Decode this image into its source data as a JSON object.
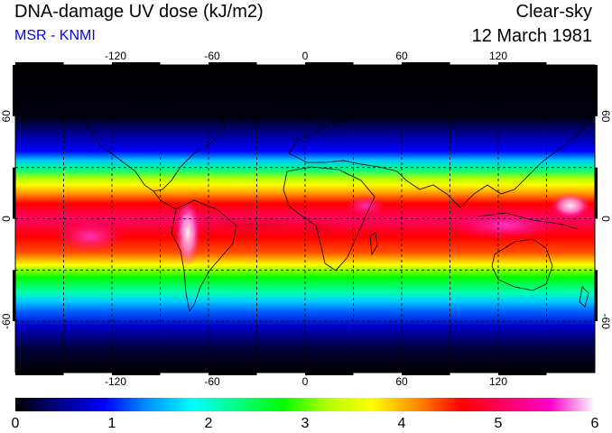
{
  "header": {
    "title": "DNA-damage UV dose (kJ/m2)",
    "subtitle": "MSR - KNMI",
    "sky_condition": "Clear-sky",
    "date": "12 March 1981"
  },
  "colors": {
    "subtitle": "#0000ff",
    "colormap": [
      "#000000",
      "#00008a",
      "#0000ff",
      "#0096ff",
      "#00ffff",
      "#00ff80",
      "#00ff00",
      "#b4ff00",
      "#ffff00",
      "#ff8c00",
      "#ff0000",
      "#ff0064",
      "#ff00c8",
      "#ffffff"
    ]
  },
  "map": {
    "longitude_ticks": [
      "-120",
      "-60",
      "0",
      "60",
      "120"
    ],
    "latitude_ticks": [
      "60",
      "0",
      "-60"
    ],
    "lon_range": [
      -180,
      180
    ],
    "lat_range": [
      -90,
      90
    ],
    "grid": "dashed every 30 degrees"
  },
  "colorbar": {
    "ticks": [
      "0",
      "1",
      "2",
      "3",
      "4",
      "5",
      "6"
    ],
    "range": [
      0,
      6
    ]
  }
}
